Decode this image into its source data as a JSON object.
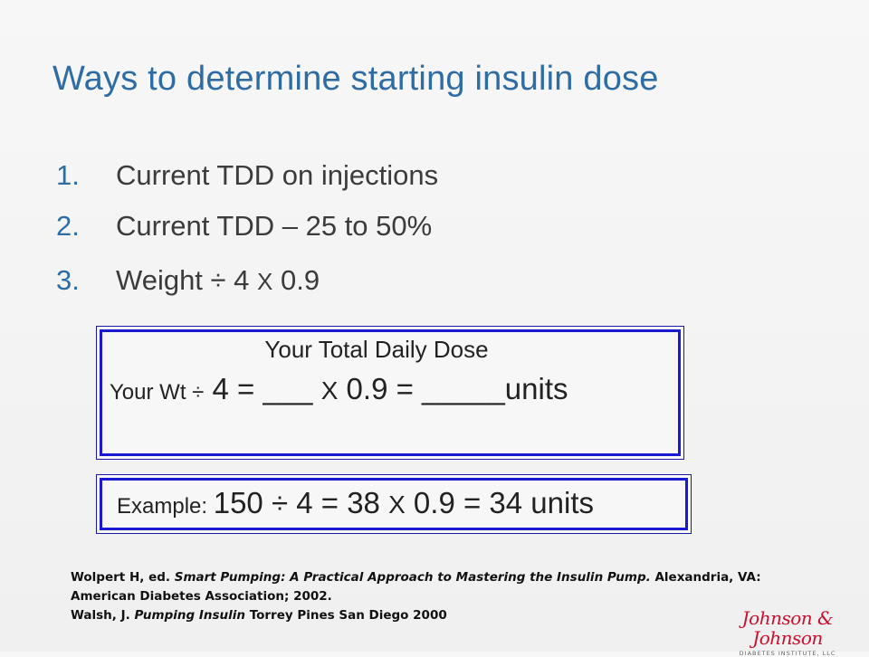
{
  "title": "Ways to determine starting insulin dose",
  "list": [
    {
      "num": "1.",
      "text": "Current TDD on injections"
    },
    {
      "num": "2.",
      "text": "Current TDD – 25 to 50%"
    },
    {
      "num": "3.",
      "text_a": "Weight ÷ 4 ",
      "text_x": "X",
      "text_b": " 0.9"
    }
  ],
  "box1": {
    "title": "Your Total Daily Dose",
    "prefix": "Your Wt ",
    "div": "÷",
    "part1": " 4 = ___  ",
    "x": "X",
    "part2": "  0.9 = _____units"
  },
  "box2": {
    "prefix": "Example: ",
    "part1": "150 ÷ 4 = 38 ",
    "x": "X",
    "part2": " 0.9 = 34 units"
  },
  "references": {
    "line1_a": "Wolpert H, ed. ",
    "line1_italic": "Smart Pumping: A Practical Approach to Mastering the Insulin Pump.",
    "line1_b": " Alexandria, VA:",
    "line2": "American Diabetes Association; 2002.",
    "line3_a": "Walsh, J. ",
    "line3_italic": "Pumping Insulin",
    "line3_b": " Torrey Pines San Diego 2000"
  },
  "logo": {
    "wordmark": "Johnson & Johnson",
    "subtitle": "DIABETES INSTITUTE, LLC"
  },
  "colors": {
    "title": "#2e6ca4",
    "box_border": "#1a1ad0",
    "logo": "#c8102e"
  }
}
